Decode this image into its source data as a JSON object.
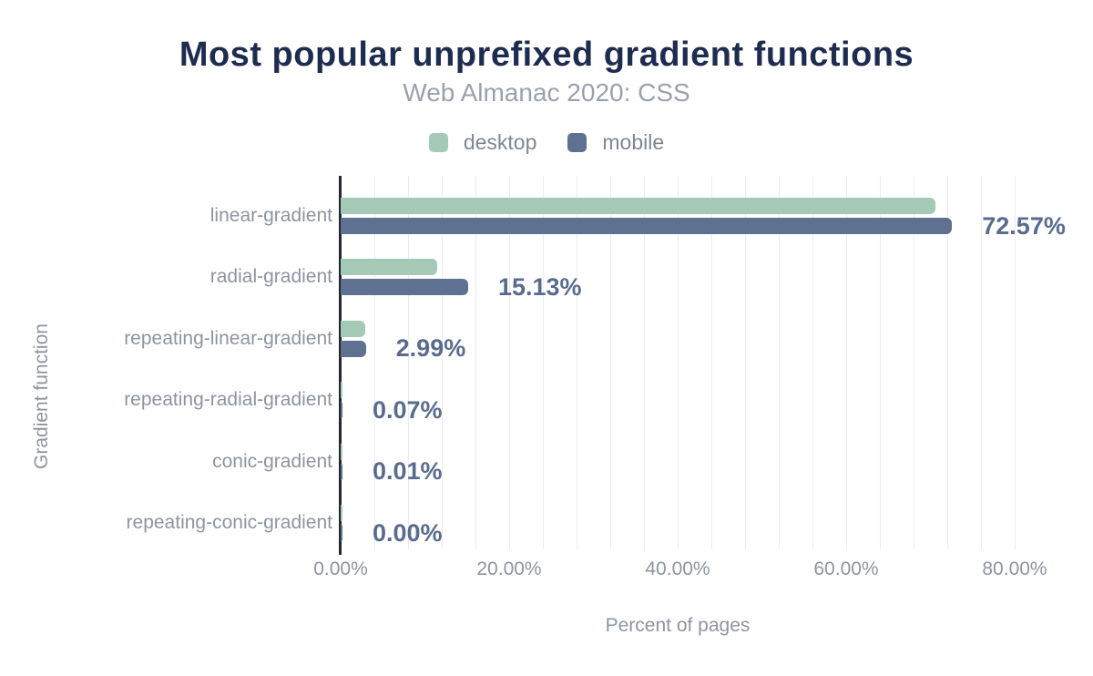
{
  "header": {
    "title": "Most popular unprefixed gradient functions",
    "subtitle": "Web Almanac 2020: CSS"
  },
  "legend": {
    "items": [
      {
        "label": "desktop",
        "color": "#a4c9b6"
      },
      {
        "label": "mobile",
        "color": "#5e7191"
      }
    ]
  },
  "axes": {
    "x_title": "Percent of pages",
    "y_title": "Gradient function"
  },
  "colors": {
    "title_text": "#1e2c50",
    "subtitle_text": "#9aa1ac",
    "axis_line": "#23262e",
    "gridline": "#ededf1",
    "tick_label": "#8d94a0",
    "data_label": "#5a6c8d",
    "desktop_bar": "#a4c9b6",
    "mobile_bar": "#5e7191"
  },
  "chart_data": {
    "type": "bar",
    "orientation": "horizontal",
    "title": "Most popular unprefixed gradient functions",
    "subtitle": "Web Almanac 2020: CSS",
    "xlabel": "Percent of pages",
    "ylabel": "Gradient function",
    "xlim": [
      0,
      80
    ],
    "x_ticks": [
      "0.00%",
      "20.00%",
      "40.00%",
      "60.00%",
      "80.00%"
    ],
    "x_tick_values": [
      0,
      20,
      40,
      60,
      80
    ],
    "minor_gridline_step": 4,
    "grid": "vertical",
    "legend_position": "top",
    "categories": [
      "linear-gradient",
      "radial-gradient",
      "repeating-linear-gradient",
      "repeating-radial-gradient",
      "conic-gradient",
      "repeating-conic-gradient"
    ],
    "series": [
      {
        "name": "desktop",
        "color": "#a4c9b6",
        "values": [
          70.6,
          11.5,
          2.9,
          0.07,
          0.01,
          0.0
        ]
      },
      {
        "name": "mobile",
        "color": "#5e7191",
        "values": [
          72.57,
          15.13,
          2.99,
          0.07,
          0.01,
          0.0
        ]
      }
    ],
    "data_labels": {
      "labeled_series": "mobile",
      "values": [
        "72.57%",
        "15.13%",
        "2.99%",
        "0.07%",
        "0.01%",
        "0.00%"
      ]
    }
  }
}
